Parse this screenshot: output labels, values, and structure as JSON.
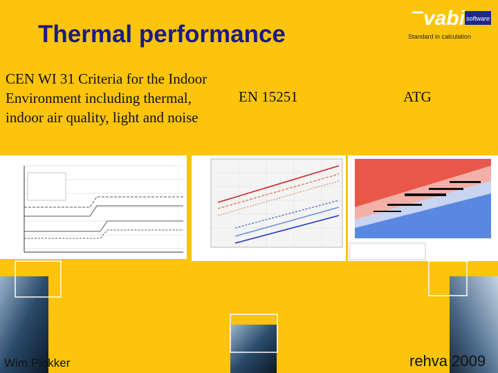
{
  "header": {
    "title": "Thermal performance"
  },
  "logo": {
    "brand": "vabi",
    "tag": "software",
    "slogan": "Standard in calculation"
  },
  "columns": [
    {
      "text": "CEN WI 31 Criteria for the Indoor Environment including thermal, indoor air quality, light and noise"
    },
    {
      "text": "EN 15251"
    },
    {
      "text": "ATG"
    }
  ],
  "footer": {
    "author": "Wim Plokker",
    "event": "rehva 2009"
  }
}
